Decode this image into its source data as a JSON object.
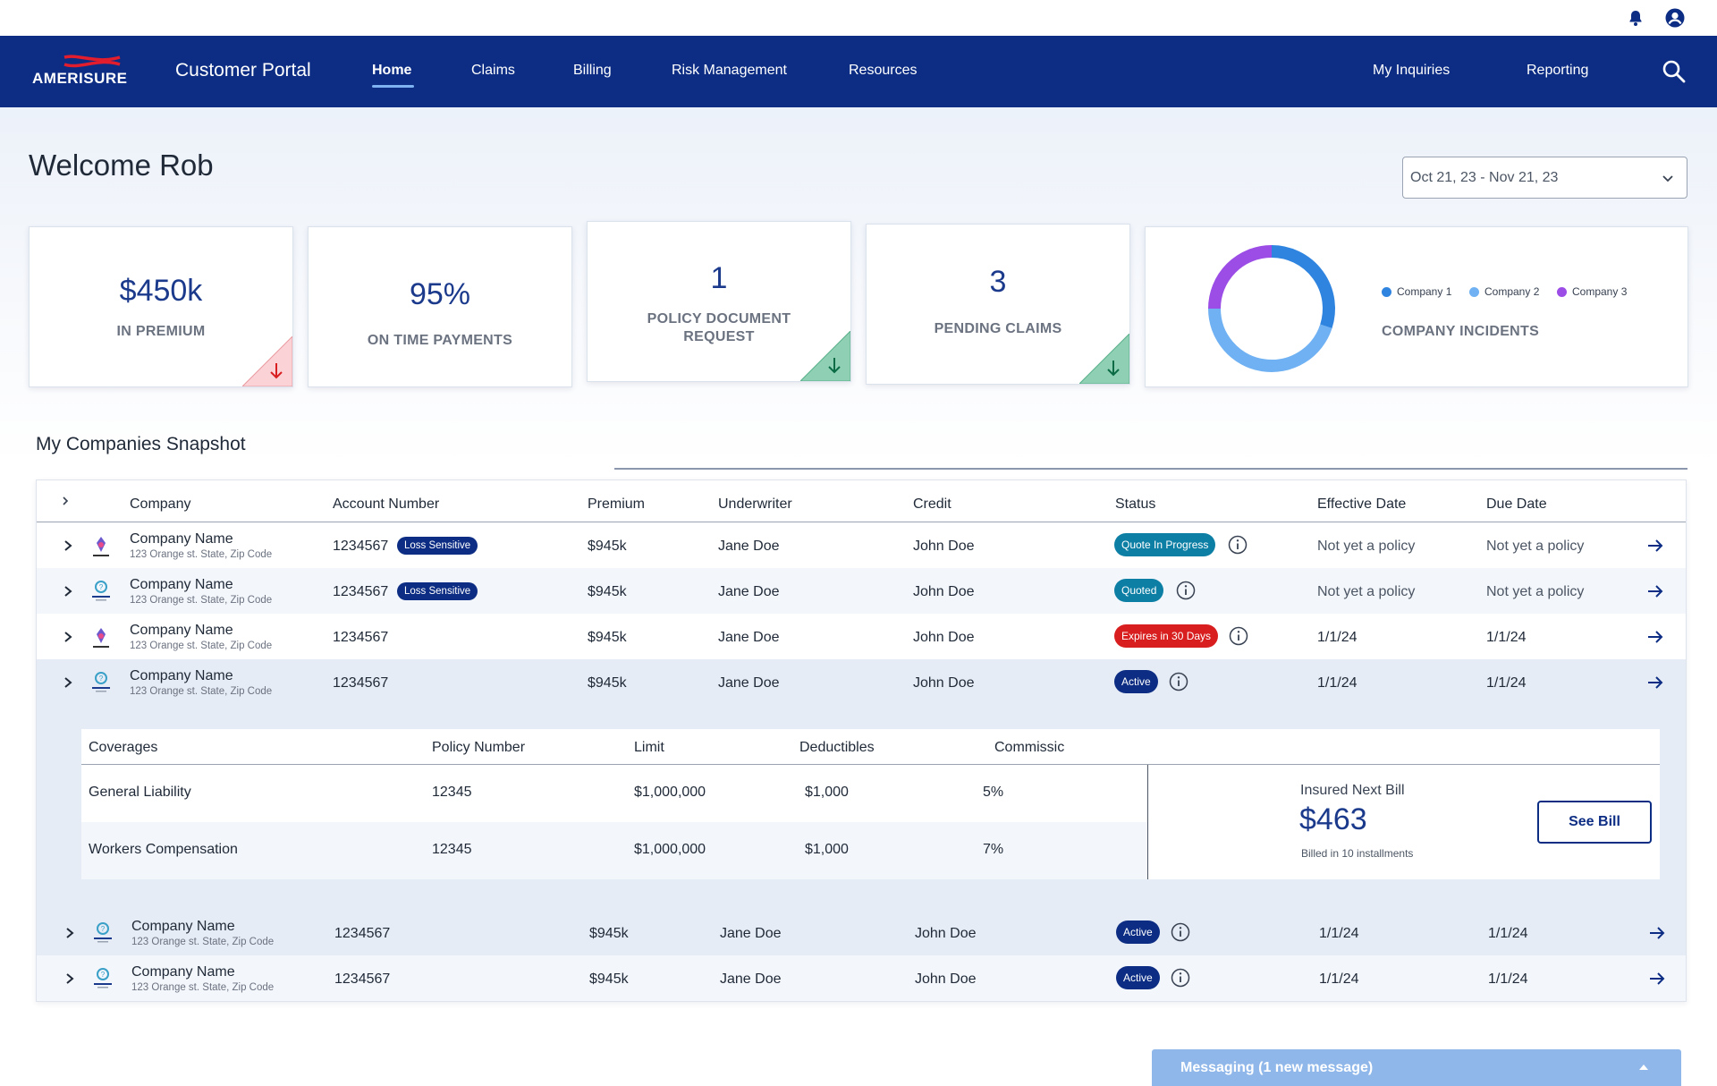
{
  "header": {
    "logo_text": "AMERISURE",
    "portal_title": "Customer Portal",
    "nav": [
      "Home",
      "Claims",
      "Billing",
      "Risk Management",
      "Resources"
    ],
    "nav_right": [
      "My Inquiries",
      "Reporting"
    ]
  },
  "welcome": "Welcome Rob",
  "date_range": "Oct 21, 23 - Nov 21, 23",
  "kpis": [
    {
      "value": "$450k",
      "label": "IN PREMIUM",
      "trend": "down"
    },
    {
      "value": "95%",
      "label": "ON TIME PAYMENTS"
    },
    {
      "value": "1",
      "label_line1": "POLICY DOCUMENT",
      "label_line2": "REQUEST",
      "trend": "down"
    },
    {
      "value": "3",
      "label": "PENDING CLAIMS",
      "trend": "down"
    }
  ],
  "incidents": {
    "label": "COMPANY INCIDENTS",
    "legend": [
      {
        "name": "Company 1",
        "color": "#2f84e0"
      },
      {
        "name": "Company 2",
        "color": "#6fb1f2"
      },
      {
        "name": "Company 3",
        "color": "#9b4de6"
      }
    ]
  },
  "chart_data": {
    "type": "pie",
    "categories": [
      "Company 1",
      "Company 2",
      "Company 3"
    ],
    "values": [
      30,
      45,
      25
    ]
  },
  "snapshot": {
    "title": "My Companies Snapshot",
    "columns": [
      "Company",
      "Account Number",
      "Premium",
      "Underwriter",
      "Credit",
      "Status",
      "Effective Date",
      "Due Date"
    ],
    "rows": [
      {
        "name": "Company Name",
        "address": "123 Orange st. State, Zip Code",
        "account": "1234567",
        "tag": "Loss Sensitive",
        "premium": "$945k",
        "underwriter": "Jane Doe",
        "credit": "John Doe",
        "status": "Quote In Progress",
        "effective": "Not yet a policy",
        "due": "Not yet a policy"
      },
      {
        "name": "Company Name",
        "address": "123 Orange st. State, Zip Code",
        "account": "1234567",
        "tag": "Loss Sensitive",
        "premium": "$945k",
        "underwriter": "Jane Doe",
        "credit": "John Doe",
        "status": "Quoted",
        "effective": "Not yet a policy",
        "due": "Not yet a policy"
      },
      {
        "name": "Company Name",
        "address": "123 Orange st. State, Zip Code",
        "account": "1234567",
        "premium": "$945k",
        "underwriter": "Jane Doe",
        "credit": "John Doe",
        "status": "Expires in 30 Days",
        "effective": "1/1/24",
        "due": "1/1/24"
      },
      {
        "name": "Company Name",
        "address": "123 Orange st. State, Zip Code",
        "account": "1234567",
        "premium": "$945k",
        "underwriter": "Jane Doe",
        "credit": "John Doe",
        "status": "Active",
        "effective": "1/1/24",
        "due": "1/1/24"
      },
      {
        "name": "Company Name",
        "address": "123 Orange st. State, Zip Code",
        "account": "1234567",
        "premium": "$945k",
        "underwriter": "Jane Doe",
        "credit": "John Doe",
        "status": "Active",
        "effective": "1/1/24",
        "due": "1/1/24"
      },
      {
        "name": "Company Name",
        "address": "123 Orange st. State, Zip Code",
        "account": "1234567",
        "premium": "$945k",
        "underwriter": "Jane Doe",
        "credit": "John Doe",
        "status": "Active",
        "effective": "1/1/24",
        "due": "1/1/24"
      }
    ]
  },
  "coverage": {
    "columns": [
      "Coverages",
      "Policy Number",
      "Limit",
      "Deductibles",
      "Commissic"
    ],
    "rows": [
      {
        "coverage": "General Liability",
        "policy": "12345",
        "limit": "$1,000,000",
        "deductible": "$1,000",
        "commission": "5%"
      },
      {
        "coverage": "Workers Compensation",
        "policy": "12345",
        "limit": "$1,000,000",
        "deductible": "$1,000",
        "commission": "7%"
      }
    ],
    "bill_label": "Insured Next Bill",
    "bill_amount": "$463",
    "bill_sub": "Billed in 10 installments",
    "see_bill": "See Bill"
  },
  "messaging": "Messaging (1 new message)"
}
